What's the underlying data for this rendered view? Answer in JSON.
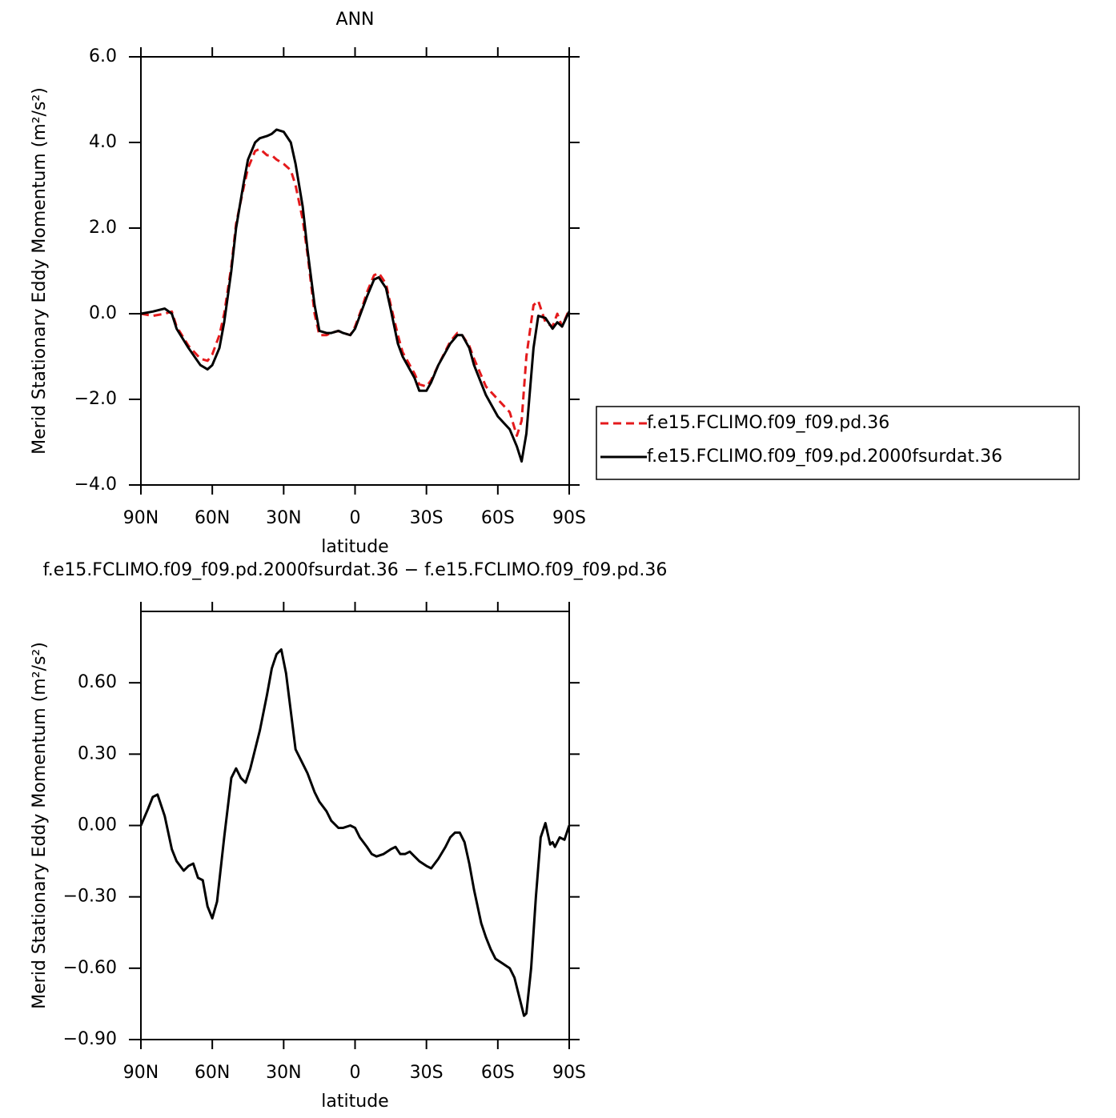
{
  "chart_data": [
    {
      "type": "line",
      "title": "ANN",
      "y_label": "Merid Stationary Eddy Momentum (m²/s²)",
      "x_label": "latitude",
      "x": [
        90,
        85,
        80,
        77,
        75,
        70,
        65,
        62,
        60,
        57,
        55,
        52,
        50,
        47,
        45,
        42,
        40,
        37,
        35,
        33,
        30,
        27,
        25,
        22,
        20,
        17,
        15,
        12,
        10,
        7,
        5,
        2,
        0,
        -3,
        -5,
        -8,
        -10,
        -13,
        -15,
        -18,
        -20,
        -25,
        -27,
        -30,
        -32,
        -35,
        -40,
        -43,
        -45,
        -48,
        -50,
        -55,
        -60,
        -65,
        -68,
        -70,
        -72,
        -75,
        -77,
        -80,
        -83,
        -85,
        -87,
        -90
      ],
      "series": [
        {
          "name": "f.e15.FCLIMO.f09_f09.pd.36",
          "color": "#e41a1c",
          "line_style": "dashed",
          "values": [
            0.0,
            -0.05,
            0.0,
            0.05,
            -0.3,
            -0.75,
            -1.05,
            -1.1,
            -0.95,
            -0.5,
            0.0,
            1.1,
            2.1,
            2.9,
            3.4,
            3.8,
            3.85,
            3.7,
            3.7,
            3.6,
            3.5,
            3.35,
            3.0,
            2.2,
            1.4,
            0.0,
            -0.5,
            -0.5,
            -0.45,
            -0.4,
            -0.45,
            -0.5,
            -0.3,
            0.15,
            0.5,
            0.9,
            0.95,
            0.7,
            0.2,
            -0.5,
            -0.9,
            -1.4,
            -1.65,
            -1.7,
            -1.55,
            -1.2,
            -0.65,
            -0.45,
            -0.5,
            -0.75,
            -1.05,
            -1.7,
            -2.0,
            -2.3,
            -2.85,
            -2.5,
            -1.0,
            0.2,
            0.3,
            -0.2,
            -0.3,
            0.0,
            -0.3,
            0.1
          ]
        },
        {
          "name": "f.e15.FCLIMO.f09_f09.pd.2000fsurdat.36",
          "color": "#000000",
          "line_style": "solid",
          "values": [
            0.0,
            0.05,
            0.12,
            0.0,
            -0.35,
            -0.8,
            -1.2,
            -1.3,
            -1.2,
            -0.8,
            -0.2,
            1.0,
            2.0,
            3.0,
            3.6,
            4.0,
            4.1,
            4.15,
            4.2,
            4.3,
            4.25,
            4.0,
            3.5,
            2.5,
            1.5,
            0.2,
            -0.4,
            -0.45,
            -0.45,
            -0.4,
            -0.45,
            -0.5,
            -0.35,
            0.1,
            0.4,
            0.8,
            0.85,
            0.6,
            0.1,
            -0.7,
            -1.0,
            -1.5,
            -1.8,
            -1.8,
            -1.6,
            -1.2,
            -0.7,
            -0.5,
            -0.5,
            -0.8,
            -1.2,
            -1.9,
            -2.4,
            -2.7,
            -3.1,
            -3.45,
            -2.8,
            -0.8,
            -0.05,
            -0.1,
            -0.35,
            -0.2,
            -0.3,
            0.05
          ]
        }
      ],
      "xlim": [
        90,
        -90
      ],
      "xticks": [
        {
          "value": 90,
          "label": "90N"
        },
        {
          "value": 60,
          "label": "60N"
        },
        {
          "value": 30,
          "label": "30N"
        },
        0,
        {
          "value": -30,
          "label": "30S"
        },
        {
          "value": -60,
          "label": "60S"
        },
        {
          "value": -90,
          "label": "90S"
        }
      ],
      "ylim": [
        -4,
        6
      ],
      "yticks": [
        {
          "value": -4,
          "label": "−4.0"
        },
        {
          "value": -2,
          "label": "−2.0"
        },
        {
          "value": 0,
          "label": "0.0"
        },
        {
          "value": 2,
          "label": "2.0"
        },
        {
          "value": 4,
          "label": "4.0"
        },
        {
          "value": 6,
          "label": "6.0"
        }
      ],
      "legend": "right"
    },
    {
      "type": "line",
      "title": "f.e15.FCLIMO.f09_f09.pd.2000fsurdat.36 − f.e15.FCLIMO.f09_f09.pd.36",
      "y_label": "Merid Stationary Eddy Momentum (m²/s²)",
      "x_label": "latitude",
      "x": [
        90,
        87,
        85,
        83,
        80,
        77,
        75,
        72,
        70,
        68,
        66,
        64,
        62,
        60,
        58,
        55,
        52,
        50,
        48,
        46,
        44,
        40,
        37,
        35,
        33,
        31,
        29,
        27,
        25,
        22,
        20,
        17,
        15,
        12,
        10,
        7,
        5,
        2,
        0,
        -2,
        -5,
        -7,
        -9,
        -12,
        -15,
        -17,
        -19,
        -21,
        -23,
        -25,
        -27,
        -30,
        -32,
        -35,
        -38,
        -40,
        -42,
        -44,
        -46,
        -48,
        -50,
        -53,
        -55,
        -57,
        -59,
        -62,
        -65,
        -67,
        -69,
        -71,
        -72,
        -74,
        -76,
        -78,
        -80,
        -82,
        -83,
        -84,
        -86,
        -88,
        -90
      ],
      "series": [
        {
          "color": "#000000",
          "line_style": "solid",
          "values": [
            0.0,
            0.07,
            0.12,
            0.13,
            0.04,
            -0.1,
            -0.15,
            -0.19,
            -0.17,
            -0.16,
            -0.22,
            -0.23,
            -0.34,
            -0.39,
            -0.32,
            -0.05,
            0.2,
            0.24,
            0.2,
            0.18,
            0.24,
            0.4,
            0.55,
            0.66,
            0.72,
            0.74,
            0.64,
            0.48,
            0.32,
            0.26,
            0.22,
            0.14,
            0.1,
            0.06,
            0.02,
            -0.01,
            -0.01,
            0.0,
            -0.01,
            -0.05,
            -0.09,
            -0.12,
            -0.13,
            -0.12,
            -0.1,
            -0.09,
            -0.12,
            -0.12,
            -0.11,
            -0.13,
            -0.15,
            -0.17,
            -0.18,
            -0.14,
            -0.09,
            -0.05,
            -0.03,
            -0.03,
            -0.07,
            -0.16,
            -0.27,
            -0.41,
            -0.47,
            -0.52,
            -0.56,
            -0.58,
            -0.6,
            -0.64,
            -0.72,
            -0.8,
            -0.79,
            -0.6,
            -0.3,
            -0.05,
            0.01,
            -0.08,
            -0.07,
            -0.09,
            -0.05,
            -0.06,
            0.0
          ]
        }
      ],
      "xlim": [
        90,
        -90
      ],
      "xticks": [
        {
          "value": 90,
          "label": "90N"
        },
        {
          "value": 60,
          "label": "60N"
        },
        {
          "value": 30,
          "label": "30N"
        },
        0,
        {
          "value": -30,
          "label": "30S"
        },
        {
          "value": -60,
          "label": "60S"
        },
        {
          "value": -90,
          "label": "90S"
        }
      ],
      "ylim": [
        -0.9,
        0.9
      ],
      "yticks": [
        {
          "value": -0.9,
          "label": "−0.90"
        },
        {
          "value": -0.6,
          "label": "−0.60"
        },
        {
          "value": -0.3,
          "label": "−0.30"
        },
        {
          "value": 0,
          "label": "0.00"
        },
        {
          "value": 0.3,
          "label": "0.30"
        },
        {
          "value": 0.6,
          "label": "0.60"
        }
      ]
    }
  ]
}
